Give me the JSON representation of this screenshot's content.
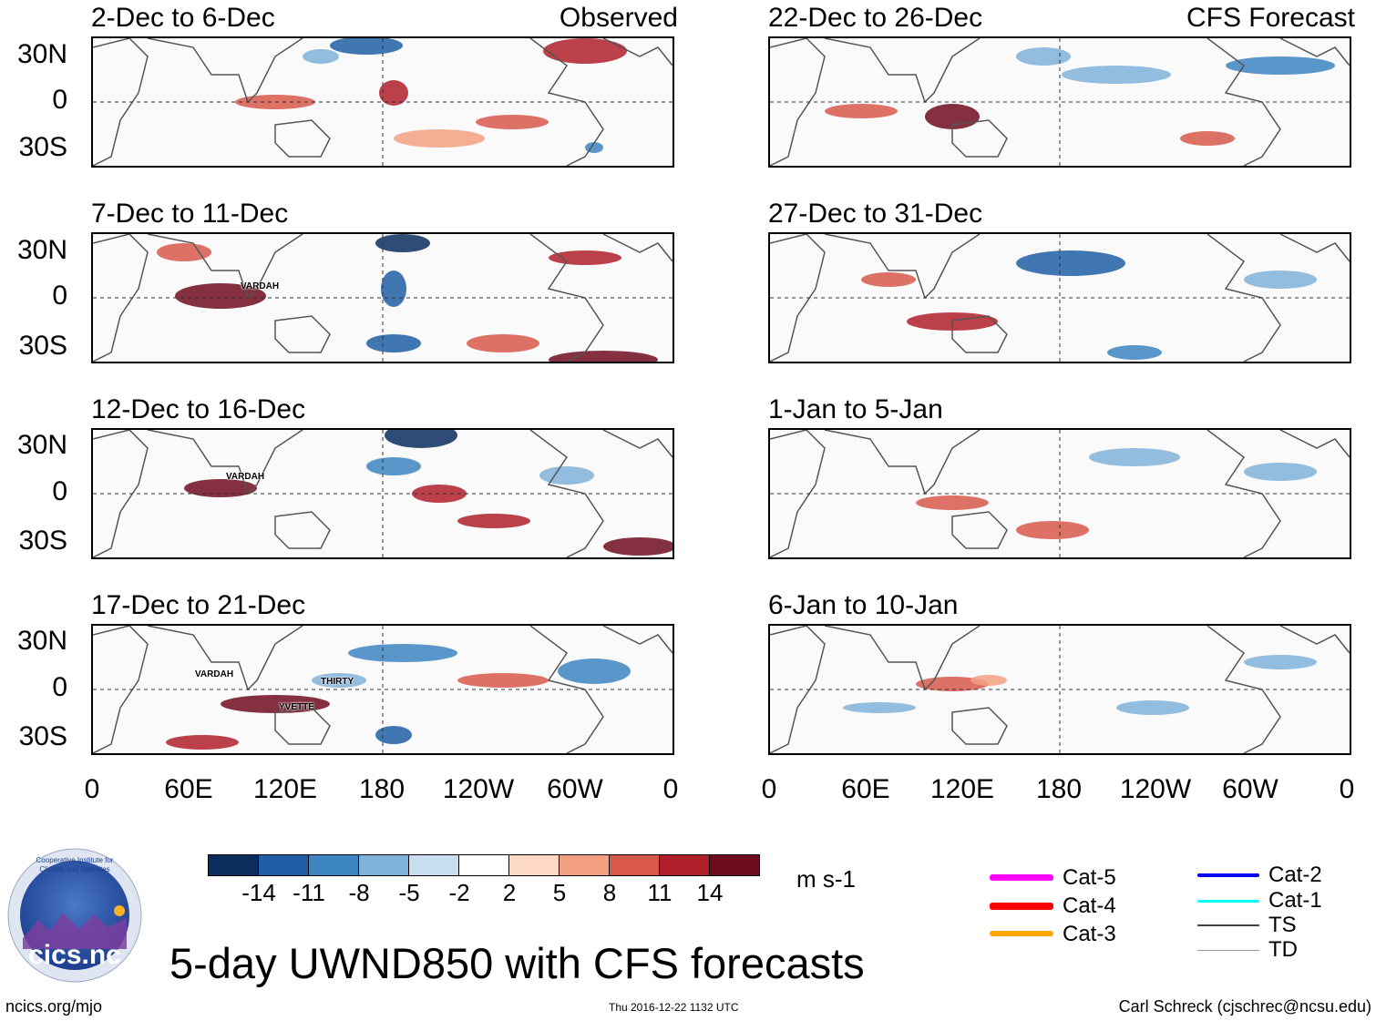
{
  "panels_left": [
    {
      "title": "2-Dec to 6-Dec",
      "tag": "Observed"
    },
    {
      "title": "7-Dec to 11-Dec",
      "tag": ""
    },
    {
      "title": "12-Dec to 16-Dec",
      "tag": ""
    },
    {
      "title": "17-Dec to 21-Dec",
      "tag": ""
    }
  ],
  "panels_right": [
    {
      "title": "22-Dec to 26-Dec",
      "tag": "CFS Forecast"
    },
    {
      "title": "27-Dec to 31-Dec",
      "tag": ""
    },
    {
      "title": "1-Jan to 5-Jan",
      "tag": ""
    },
    {
      "title": "6-Jan to 10-Jan",
      "tag": ""
    }
  ],
  "lat_labels": [
    "30N",
    "0",
    "30S"
  ],
  "lon_labels": [
    "0",
    "60E",
    "120E",
    "180",
    "120W",
    "60W",
    "0"
  ],
  "storms": {
    "p2": [
      "VARDAH"
    ],
    "p3": [
      "VARDAH"
    ],
    "p4": [
      "VARDAH",
      "THIRTY",
      "YVETTE"
    ]
  },
  "colorbar": {
    "units": "m s-1",
    "labels": [
      "-14",
      "-11",
      "-8",
      "-5",
      "-2",
      "2",
      "5",
      "8",
      "11",
      "14"
    ],
    "colors": [
      "#0a2d5e",
      "#1f5fa6",
      "#3c85c2",
      "#7fb2d8",
      "#c9dfef",
      "#ffffff",
      "#fdd8c5",
      "#f2a080",
      "#d8584a",
      "#b01e2a",
      "#6e0c1e"
    ]
  },
  "legend": [
    {
      "label": "Cat-5",
      "color": "#ff00ff"
    },
    {
      "label": "Cat-4",
      "color": "#ff0000"
    },
    {
      "label": "Cat-3",
      "color": "#ffa500"
    },
    {
      "label": "Cat-2",
      "color": "#0000ff"
    },
    {
      "label": "Cat-1",
      "color": "#00ffff"
    },
    {
      "label": "TS",
      "color": "#444444"
    },
    {
      "label": "TD",
      "color": "#999999"
    }
  ],
  "logo_text": "cics.nc",
  "logo_ring_text": "Cooperative Institute for Climate and Satellites",
  "main_title": "5-day UWND850 with CFS forecasts",
  "footer": {
    "left": "ncics.org/mjo",
    "center": "Thu 2016-12-22 1132 UTC",
    "right": "Carl Schreck (cjschrec@ncsu.edu)"
  }
}
